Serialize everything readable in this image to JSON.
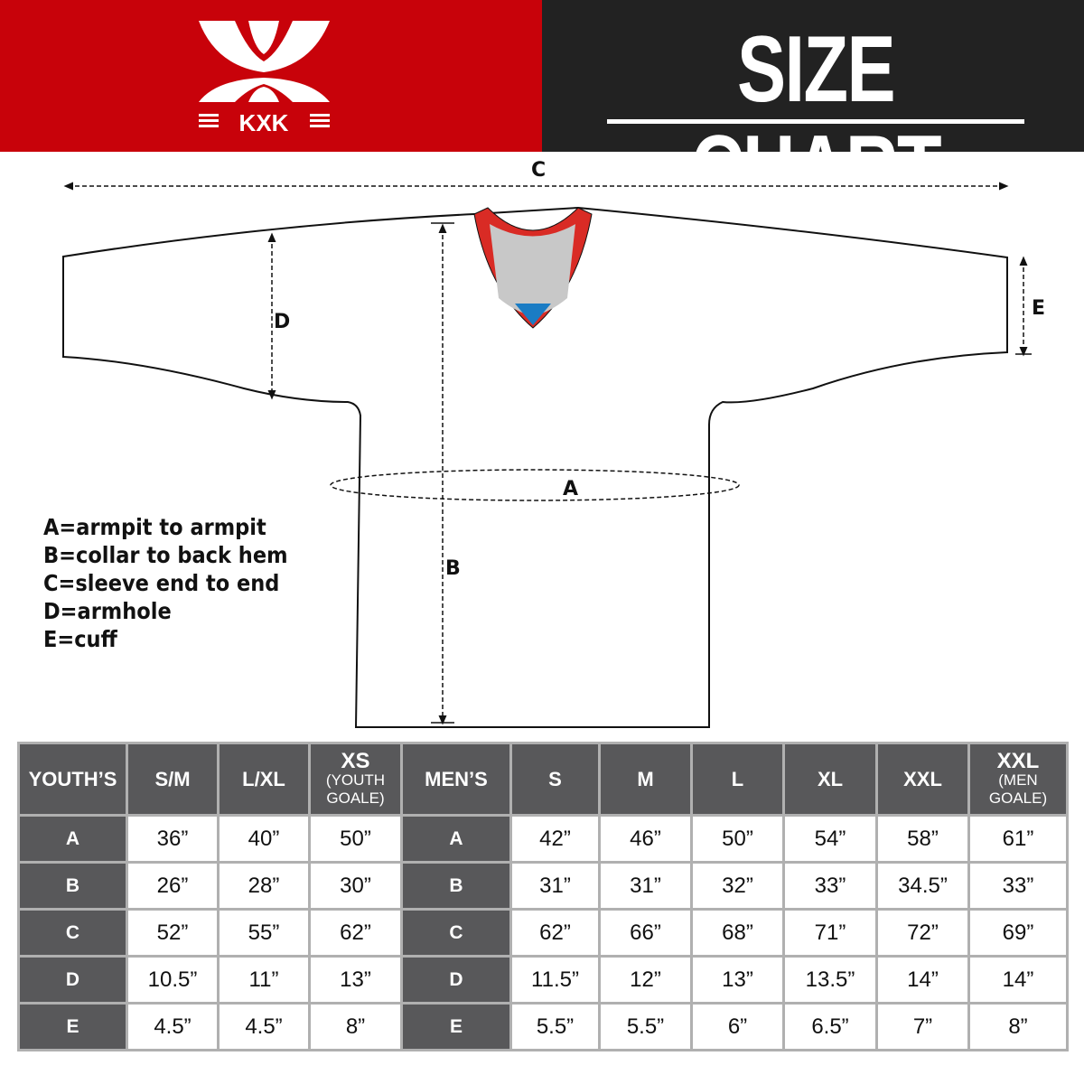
{
  "brand": {
    "logo_text": "KXK",
    "logo_colors": {
      "background": "#c8020a",
      "mark": "#ffffff"
    }
  },
  "header": {
    "title": "SIZE CHART"
  },
  "diagram": {
    "labels": {
      "a": "A",
      "b": "B",
      "c": "C",
      "d": "D",
      "e": "E"
    },
    "collar_colors": {
      "trim": "#d92b25",
      "inner": "#c8c8c8",
      "tip": "#1a7cc4"
    }
  },
  "legend": [
    "A=armpit to armpit",
    "B=collar to back hem",
    "C=sleeve end to end",
    "D=armhole",
    "E=cuff"
  ],
  "table": {
    "youth": {
      "header": "YOUTH’S",
      "columns": [
        {
          "label": "S/M"
        },
        {
          "label": "L/XL"
        },
        {
          "label": "XS",
          "sub": "(YOUTH GOALE)"
        }
      ]
    },
    "men": {
      "header": "MEN’S",
      "columns": [
        {
          "label": "S"
        },
        {
          "label": "M"
        },
        {
          "label": "L"
        },
        {
          "label": "XL"
        },
        {
          "label": "XXL"
        },
        {
          "label": "XXL",
          "sub": "(MEN GOALE)"
        }
      ]
    },
    "rows": [
      {
        "key": "A",
        "youth": [
          "36”",
          "40”",
          "50”"
        ],
        "men": [
          "42”",
          "46”",
          "50”",
          "54”",
          "58”",
          "61”"
        ]
      },
      {
        "key": "B",
        "youth": [
          "26”",
          "28”",
          "30”"
        ],
        "men": [
          "31”",
          "31”",
          "32”",
          "33”",
          "34.5”",
          "33”"
        ]
      },
      {
        "key": "C",
        "youth": [
          "52”",
          "55”",
          "62”"
        ],
        "men": [
          "62”",
          "66”",
          "68”",
          "71”",
          "72”",
          "69”"
        ]
      },
      {
        "key": "D",
        "youth": [
          "10.5”",
          "11”",
          "13”"
        ],
        "men": [
          "11.5”",
          "12”",
          "13”",
          "13.5”",
          "14”",
          "14”"
        ]
      },
      {
        "key": "E",
        "youth": [
          "4.5”",
          "4.5”",
          "8”"
        ],
        "men": [
          "5.5”",
          "5.5”",
          "6”",
          "6.5”",
          "7”",
          "8”"
        ]
      }
    ]
  }
}
